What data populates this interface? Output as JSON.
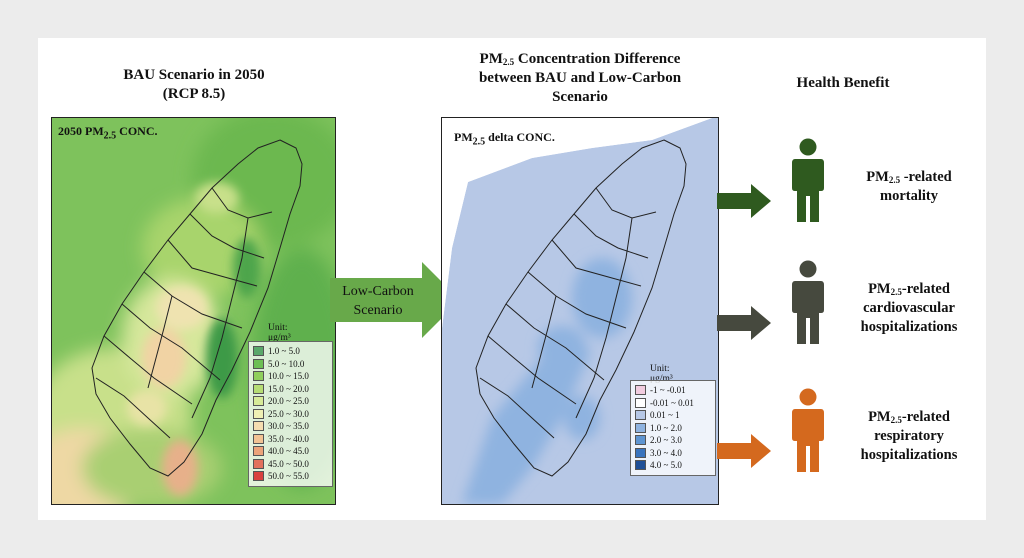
{
  "left_panel": {
    "title_line1": "BAU Scenario in 2050",
    "title_line2": "(RCP 8.5)",
    "map_label_pre": "2050 PM",
    "map_label_sub": "2.5",
    "map_label_post": " CONC.",
    "legend_unit": "Unit: μg/m³",
    "legend": [
      {
        "label": "1.0 ~ 5.0",
        "color": "#5aa86a"
      },
      {
        "label": "5.0 ~ 10.0",
        "color": "#6cbf54"
      },
      {
        "label": "10.0 ~ 15.0",
        "color": "#8fcf5c"
      },
      {
        "label": "15.0 ~ 20.0",
        "color": "#b6dd74"
      },
      {
        "label": "20.0 ~ 25.0",
        "color": "#d7eb98"
      },
      {
        "label": "25.0 ~ 30.0",
        "color": "#eff0b4"
      },
      {
        "label": "30.0 ~ 35.0",
        "color": "#f6ddb0"
      },
      {
        "label": "35.0 ~ 40.0",
        "color": "#f2c394"
      },
      {
        "label": "40.0 ~ 45.0",
        "color": "#eca37a"
      },
      {
        "label": "45.0 ~ 50.0",
        "color": "#e2705c"
      },
      {
        "label": "50.0 ~ 55.0",
        "color": "#d9413f"
      }
    ]
  },
  "middle_arrow": {
    "line1": "Low-Carbon",
    "line2": "Scenario",
    "color": "#68a94a"
  },
  "middle_panel": {
    "title_pre": "PM",
    "title_sub": "2.5",
    "title_line1_post": "  Concentration Difference",
    "title_line2": "between BAU and Low-Carbon",
    "title_line3": "Scenario",
    "map_label_pre": "PM",
    "map_label_sub": "2.5",
    "map_label_post": " delta CONC.",
    "legend_unit": "Unit: μg/m³",
    "legend": [
      {
        "label": "-1 ~ -0.01",
        "color": "#f2cde0"
      },
      {
        "label": "-0.01 ~ 0.01",
        "color": "#ffffff"
      },
      {
        "label": "0.01 ~ 1",
        "color": "#b7c8e6"
      },
      {
        "label": "1.0 ~ 2.0",
        "color": "#8fb3e0"
      },
      {
        "label": "2.0 ~ 3.0",
        "color": "#5f95d1"
      },
      {
        "label": "3.0 ~ 4.0",
        "color": "#3a74bd"
      },
      {
        "label": "4.0 ~ 5.0",
        "color": "#1f4f96"
      }
    ]
  },
  "right_panel": {
    "title": "Health Benefit",
    "benefits": [
      {
        "pre": "PM",
        "sub": "2.5",
        "post": " -related",
        "line2": "mortality",
        "line3": "",
        "color": "#2f5a1f",
        "arrow_color": "#2f5a1f"
      },
      {
        "pre": "PM",
        "sub": "2.5",
        "post": "-related",
        "line2": "cardiovascular",
        "line3": "hospitalizations",
        "color": "#46493e",
        "arrow_color": "#46493e"
      },
      {
        "pre": "PM",
        "sub": "2.5",
        "post": "-related",
        "line2": "respiratory",
        "line3": "hospitalizations",
        "color": "#d4691e",
        "arrow_color": "#d4691e"
      }
    ]
  }
}
